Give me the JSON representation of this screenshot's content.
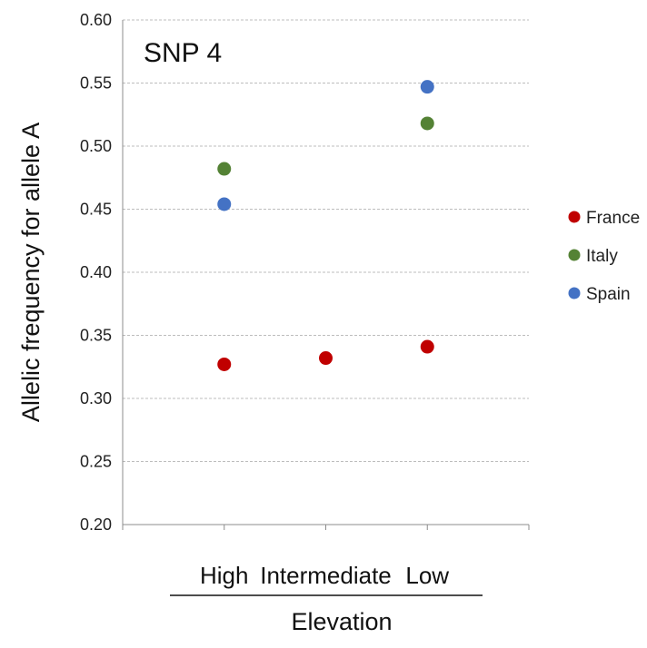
{
  "chart_data": {
    "type": "scatter",
    "title": "SNP 4",
    "xlabel": "Elevation",
    "ylabel": "Allelic frequency for allele A",
    "categories": [
      "High",
      "Intermediate",
      "Low"
    ],
    "ylim": [
      0.2,
      0.6
    ],
    "yticks": [
      "0.20",
      "0.25",
      "0.30",
      "0.35",
      "0.40",
      "0.45",
      "0.50",
      "0.55",
      "0.60"
    ],
    "grid": true,
    "legend_position": "right",
    "series": [
      {
        "name": "France",
        "color": "#c00000",
        "values": [
          0.327,
          0.332,
          0.341
        ]
      },
      {
        "name": "Italy",
        "color": "#548235",
        "values": [
          0.482,
          null,
          0.518
        ]
      },
      {
        "name": "Spain",
        "color": "#4472c4",
        "values": [
          0.454,
          null,
          0.547
        ]
      }
    ]
  }
}
